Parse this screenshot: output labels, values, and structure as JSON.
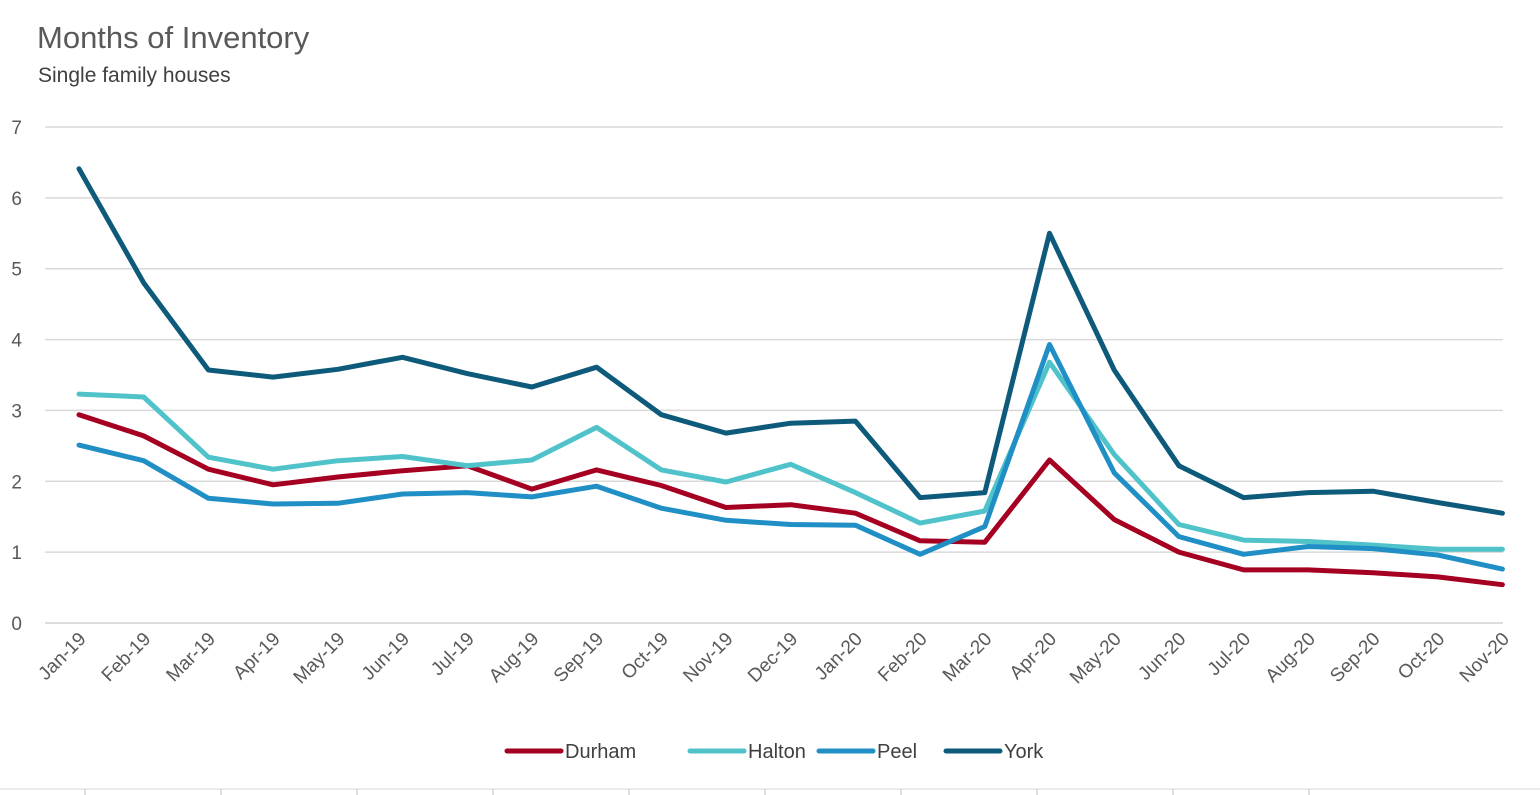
{
  "chart_data": {
    "type": "line",
    "title": "Months of Inventory",
    "subtitle": "Single family houses",
    "xlabel": "",
    "ylabel": "",
    "ylim": [
      0,
      7
    ],
    "yticks": [
      "0",
      "1",
      "2",
      "3",
      "4",
      "5",
      "6",
      "7"
    ],
    "grid": "horizontal",
    "legend_position": "bottom",
    "categories": [
      "Jan-19",
      "Feb-19",
      "Mar-19",
      "Apr-19",
      "May-19",
      "Jun-19",
      "Jul-19",
      "Aug-19",
      "Sep-19",
      "Oct-19",
      "Nov-19",
      "Dec-19",
      "Jan-20",
      "Feb-20",
      "Mar-20",
      "Apr-20",
      "May-20",
      "Jun-20",
      "Jul-20",
      "Aug-20",
      "Sep-20",
      "Oct-20",
      "Nov-20"
    ],
    "series": [
      {
        "name": "Durham",
        "color": "#A50021",
        "values": [
          2.94,
          2.64,
          2.17,
          1.95,
          2.06,
          2.15,
          2.22,
          1.89,
          2.16,
          1.94,
          1.63,
          1.67,
          1.55,
          1.16,
          1.14,
          2.3,
          1.46,
          1.0,
          0.75,
          0.75,
          0.71,
          0.65,
          0.54
        ]
      },
      {
        "name": "Halton",
        "color": "#4FC3C9",
        "values": [
          3.23,
          3.19,
          2.34,
          2.17,
          2.29,
          2.35,
          2.22,
          2.3,
          2.76,
          2.16,
          1.99,
          2.24,
          1.84,
          1.41,
          1.58,
          3.68,
          2.38,
          1.39,
          1.17,
          1.15,
          1.1,
          1.04,
          1.04
        ]
      },
      {
        "name": "Peel",
        "color": "#1F8FC6",
        "values": [
          2.51,
          2.29,
          1.76,
          1.68,
          1.69,
          1.82,
          1.84,
          1.78,
          1.93,
          1.62,
          1.45,
          1.39,
          1.38,
          0.97,
          1.36,
          3.93,
          2.12,
          1.22,
          0.97,
          1.08,
          1.05,
          0.96,
          0.76
        ]
      },
      {
        "name": "York",
        "color": "#0E5A7A",
        "values": [
          6.41,
          4.8,
          3.57,
          3.47,
          3.58,
          3.75,
          3.52,
          3.33,
          3.61,
          2.94,
          2.68,
          2.82,
          2.85,
          1.77,
          1.84,
          5.5,
          3.57,
          2.22,
          1.77,
          1.84,
          1.86,
          1.7,
          1.55
        ]
      }
    ]
  }
}
